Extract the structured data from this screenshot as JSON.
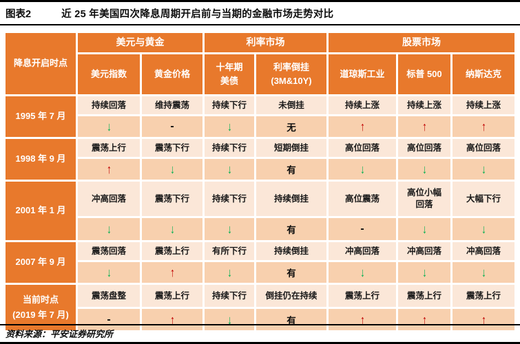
{
  "title": {
    "label": "图表2",
    "text": "近 25 年美国四次降息周期开启前与当期的金融市场走势对比"
  },
  "table": {
    "corner_header": "降息开启时点",
    "groups": [
      {
        "label": "美元与黄金",
        "span": 2
      },
      {
        "label": "利率市场",
        "span": 2
      },
      {
        "label": "股票市场",
        "span": 3
      }
    ],
    "columns": [
      "美元指数",
      "黄金价格",
      "十年期\n美债",
      "利率倒挂\n(3M&10Y)",
      "道琼斯工业",
      "标普 500",
      "纳斯达克"
    ],
    "rows": [
      {
        "period": "1995 年 7 月",
        "cells": [
          {
            "text": "持续回落",
            "indicator": "down"
          },
          {
            "text": "维持震荡",
            "indicator": "-"
          },
          {
            "text": "持续下行",
            "indicator": "down"
          },
          {
            "text": "未倒挂",
            "indicator": "无"
          },
          {
            "text": "持续上涨",
            "indicator": "up"
          },
          {
            "text": "持续上涨",
            "indicator": "up"
          },
          {
            "text": "持续上涨",
            "indicator": "up"
          }
        ]
      },
      {
        "period": "1998 年 9 月",
        "cells": [
          {
            "text": "震荡上行",
            "indicator": "up"
          },
          {
            "text": "震荡下行",
            "indicator": "down"
          },
          {
            "text": "持续下行",
            "indicator": "down"
          },
          {
            "text": "短期倒挂",
            "indicator": "有"
          },
          {
            "text": "高位回落",
            "indicator": "down"
          },
          {
            "text": "高位回落",
            "indicator": "down"
          },
          {
            "text": "高位回落",
            "indicator": "down"
          }
        ]
      },
      {
        "period": "2001 年 1 月",
        "cells": [
          {
            "text": "冲高回落",
            "indicator": "down"
          },
          {
            "text": "震荡下行",
            "indicator": "down"
          },
          {
            "text": "持续下行",
            "indicator": "down"
          },
          {
            "text": "持续倒挂",
            "indicator": "有"
          },
          {
            "text": "高位震荡",
            "indicator": "-"
          },
          {
            "text": "高位小幅\n回落",
            "indicator": "down"
          },
          {
            "text": "大幅下行",
            "indicator": "down"
          }
        ]
      },
      {
        "period": "2007 年 9 月",
        "cells": [
          {
            "text": "震荡回落",
            "indicator": "down"
          },
          {
            "text": "震荡上行",
            "indicator": "up"
          },
          {
            "text": "有所下行",
            "indicator": "down"
          },
          {
            "text": "持续倒挂",
            "indicator": "有"
          },
          {
            "text": "冲高回落",
            "indicator": "down"
          },
          {
            "text": "冲高回落",
            "indicator": "down"
          },
          {
            "text": "冲高回落",
            "indicator": "down"
          }
        ]
      },
      {
        "period": "当前时点\n(2019 年 7 月)",
        "cells": [
          {
            "text": "震荡盘整",
            "indicator": "-"
          },
          {
            "text": "震荡上行",
            "indicator": "up"
          },
          {
            "text": "持续下行",
            "indicator": "down"
          },
          {
            "text": "倒挂仍在持续",
            "indicator": "有"
          },
          {
            "text": "震荡上行",
            "indicator": "up"
          },
          {
            "text": "震荡上行",
            "indicator": "up"
          },
          {
            "text": "震荡上行",
            "indicator": "up"
          }
        ]
      }
    ]
  },
  "glyphs": {
    "up": "↑",
    "down": "↓"
  },
  "colors": {
    "header_orange": "#E8792C",
    "row_light": "#FBE7D8",
    "row_medium": "#F8D0AE",
    "up_red": "#C00000",
    "down_green": "#00B050"
  },
  "footer": {
    "source": "资料来源：平安证券研究所"
  }
}
